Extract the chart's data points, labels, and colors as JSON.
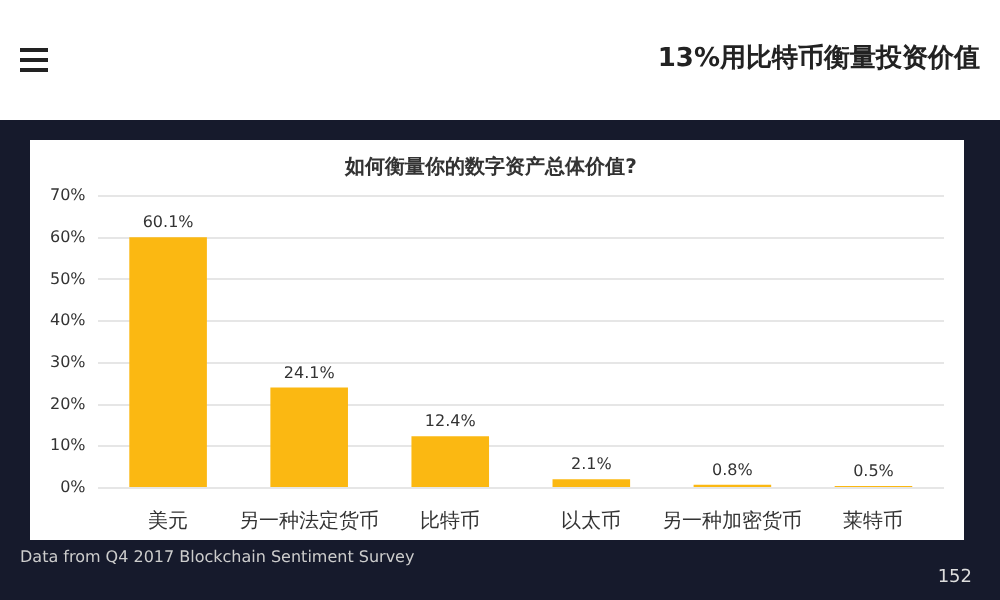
{
  "chart_data": {
    "type": "bar",
    "title": "如何衡量你的数字资产总体价值?",
    "categories": [
      "美元",
      "另一种法定货币",
      "比特币",
      "以太币",
      "另一种加密货币",
      "莱特币"
    ],
    "values": [
      60.1,
      24.1,
      12.4,
      2.1,
      0.8,
      0.5
    ],
    "value_labels": [
      "60.1%",
      "24.1%",
      "12.4%",
      "2.1%",
      "0.8%",
      "0.5%"
    ],
    "color": "#fbb812",
    "ylim": [
      0,
      70
    ],
    "yticks": [
      {
        "value": 0,
        "label": "0%"
      },
      {
        "value": 10,
        "label": "10%"
      },
      {
        "value": 20,
        "label": "20%"
      },
      {
        "value": 30,
        "label": "30%"
      },
      {
        "value": 40,
        "label": "40%"
      },
      {
        "value": 50,
        "label": "50%"
      },
      {
        "value": 60,
        "label": "60%"
      },
      {
        "value": 70,
        "label": "70%"
      }
    ],
    "grid": "y",
    "annotations": [
      "13%用比特币衡量投资价值",
      "Data from Q4 2017 Blockchain Sentiment Survey",
      "152"
    ]
  }
}
